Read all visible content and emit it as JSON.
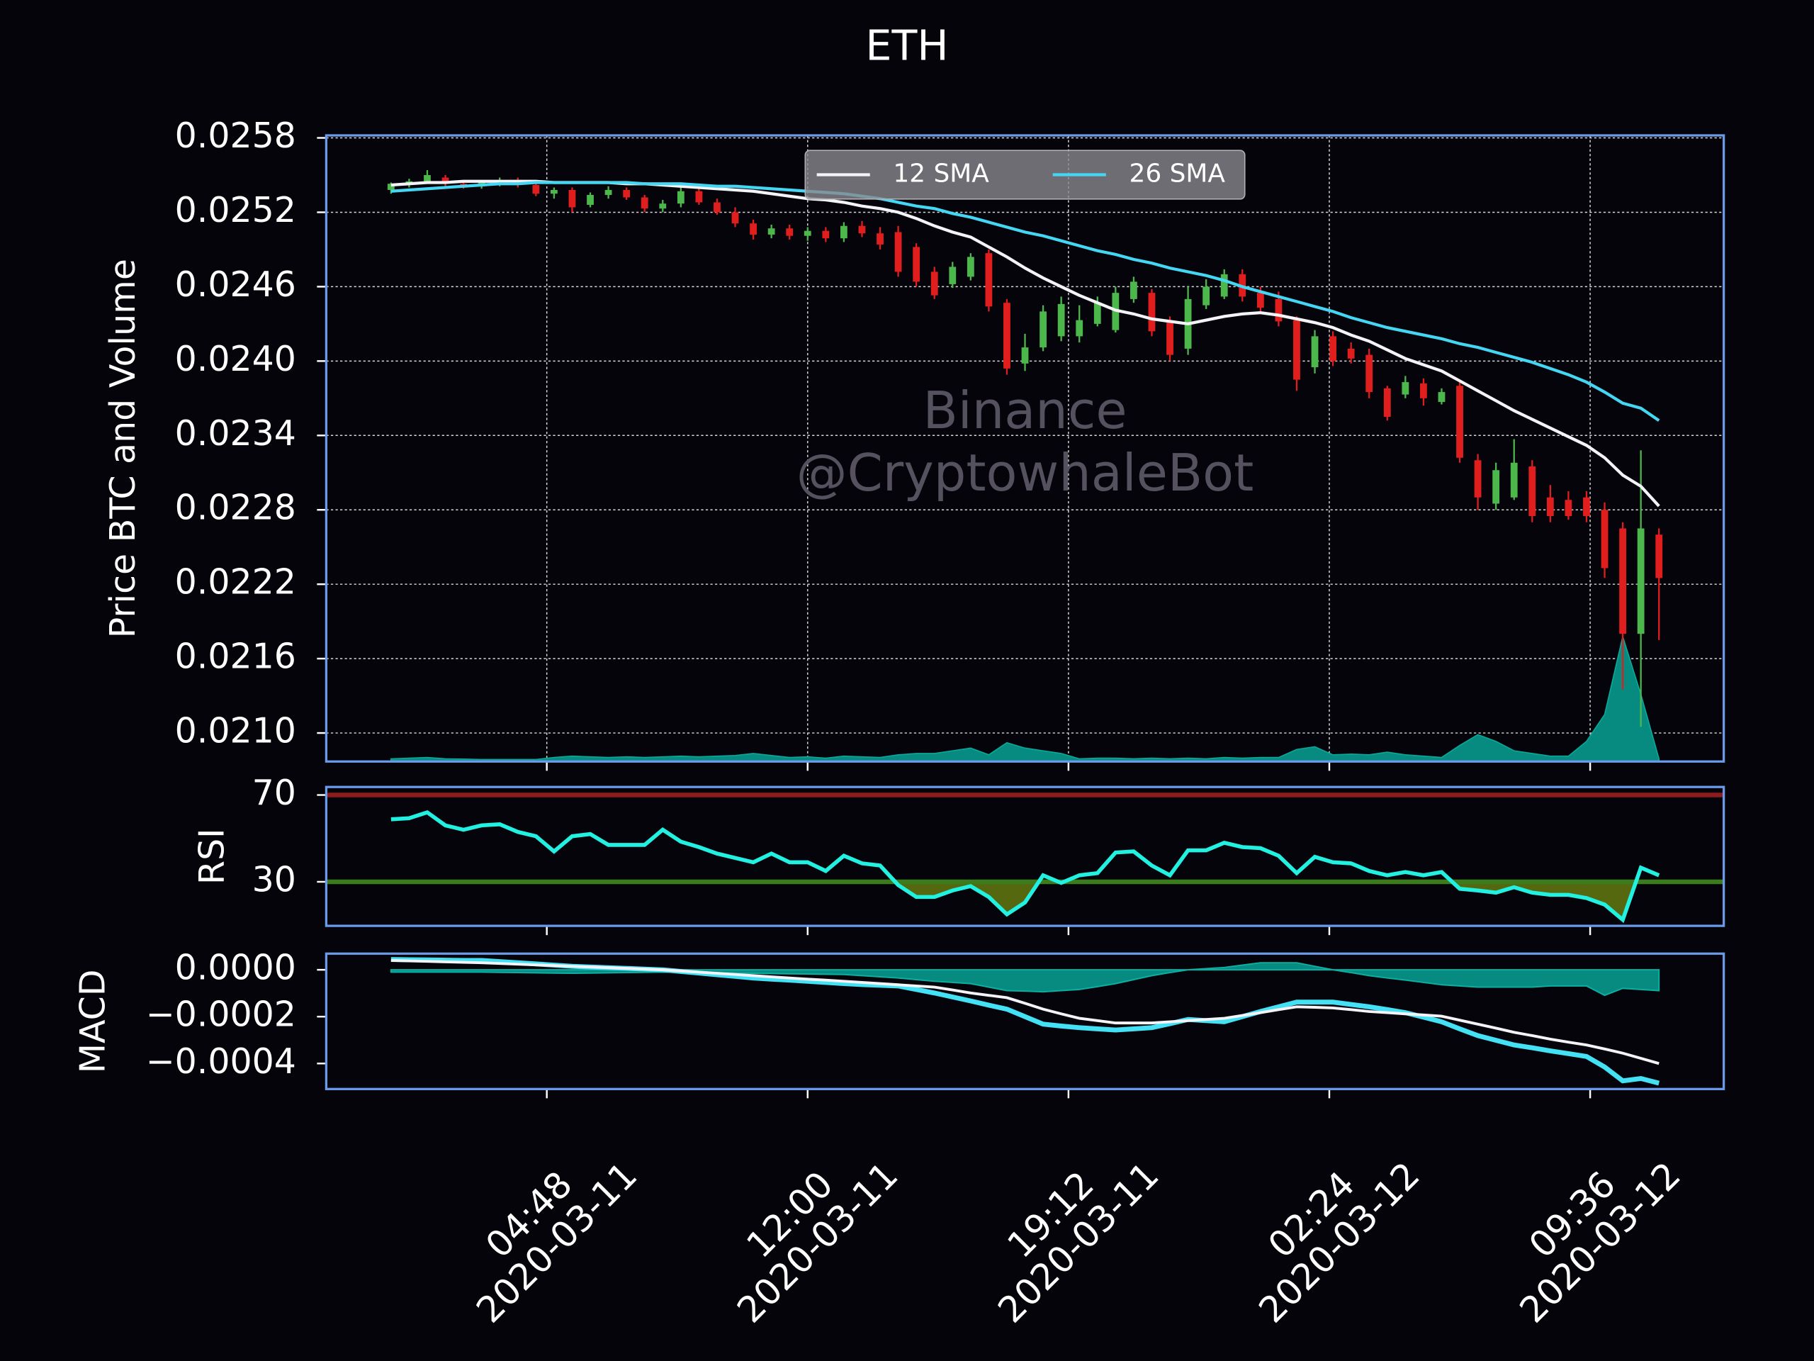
{
  "chart_data": [
    {
      "type": "candlestick",
      "title": "ETH",
      "y_label": "Price BTC and Volume",
      "watermark": [
        "Binance",
        "@CryptowhaleBot"
      ],
      "x": [
        "2020-03-11 00:30",
        "2020-03-11 01:00",
        "2020-03-11 01:30",
        "2020-03-11 02:00",
        "2020-03-11 02:30",
        "2020-03-11 03:00",
        "2020-03-11 03:30",
        "2020-03-11 04:00",
        "2020-03-11 04:30",
        "2020-03-11 05:00",
        "2020-03-11 05:30",
        "2020-03-11 06:00",
        "2020-03-11 06:30",
        "2020-03-11 07:00",
        "2020-03-11 07:30",
        "2020-03-11 08:00",
        "2020-03-11 08:30",
        "2020-03-11 09:00",
        "2020-03-11 09:30",
        "2020-03-11 10:00",
        "2020-03-11 10:30",
        "2020-03-11 11:00",
        "2020-03-11 11:30",
        "2020-03-11 12:00",
        "2020-03-11 12:30",
        "2020-03-11 13:00",
        "2020-03-11 13:30",
        "2020-03-11 14:00",
        "2020-03-11 14:30",
        "2020-03-11 15:00",
        "2020-03-11 15:30",
        "2020-03-11 16:00",
        "2020-03-11 16:30",
        "2020-03-11 17:00",
        "2020-03-11 17:30",
        "2020-03-11 18:00",
        "2020-03-11 18:30",
        "2020-03-11 19:00",
        "2020-03-11 19:30",
        "2020-03-11 20:00",
        "2020-03-11 20:30",
        "2020-03-11 21:00",
        "2020-03-11 21:30",
        "2020-03-11 22:00",
        "2020-03-11 22:30",
        "2020-03-11 23:00",
        "2020-03-11 23:30",
        "2020-03-12 00:00",
        "2020-03-12 00:30",
        "2020-03-12 01:00",
        "2020-03-12 01:30",
        "2020-03-12 02:00",
        "2020-03-12 02:30",
        "2020-03-12 03:00",
        "2020-03-12 03:30",
        "2020-03-12 04:00",
        "2020-03-12 04:30",
        "2020-03-12 05:00",
        "2020-03-12 05:30",
        "2020-03-12 06:00",
        "2020-03-12 06:30",
        "2020-03-12 07:00",
        "2020-03-12 07:30",
        "2020-03-12 08:00",
        "2020-03-12 08:30",
        "2020-03-12 09:00",
        "2020-03-12 09:30",
        "2020-03-12 10:00",
        "2020-03-12 10:30",
        "2020-03-12 11:00",
        "2020-03-12 11:30"
      ],
      "open": [
        0.02538,
        0.02543,
        0.02545,
        0.02548,
        0.02543,
        0.02541,
        0.02544,
        0.02546,
        0.02542,
        0.02535,
        0.02538,
        0.02526,
        0.02534,
        0.02538,
        0.02532,
        0.02523,
        0.02527,
        0.02537,
        0.02528,
        0.0252,
        0.02511,
        0.02502,
        0.02507,
        0.02501,
        0.02505,
        0.02499,
        0.02509,
        0.02503,
        0.02504,
        0.02492,
        0.02472,
        0.02462,
        0.02468,
        0.02487,
        0.02447,
        0.02398,
        0.02411,
        0.0242,
        0.0242,
        0.0243,
        0.02425,
        0.0245,
        0.02455,
        0.02432,
        0.0241,
        0.02445,
        0.02452,
        0.0247,
        0.02455,
        0.0245,
        0.02433,
        0.02395,
        0.0242,
        0.0241,
        0.02405,
        0.02378,
        0.02373,
        0.02382,
        0.02367,
        0.0238,
        0.0232,
        0.02285,
        0.0229,
        0.02315,
        0.0229,
        0.02288,
        0.0229,
        0.0228,
        0.02265,
        0.0218,
        0.0226
      ],
      "high": [
        0.02544,
        0.02547,
        0.02554,
        0.0255,
        0.02546,
        0.02546,
        0.02548,
        0.02548,
        0.02544,
        0.0254,
        0.0254,
        0.02536,
        0.02541,
        0.0254,
        0.02534,
        0.0253,
        0.0254,
        0.0254,
        0.02531,
        0.02524,
        0.02514,
        0.0251,
        0.0251,
        0.02508,
        0.02508,
        0.02512,
        0.02513,
        0.02508,
        0.02509,
        0.02495,
        0.02476,
        0.0248,
        0.02487,
        0.0249,
        0.0245,
        0.02422,
        0.02445,
        0.02452,
        0.02445,
        0.02452,
        0.0246,
        0.02468,
        0.02458,
        0.02436,
        0.0246,
        0.02466,
        0.02474,
        0.02474,
        0.0246,
        0.02456,
        0.02436,
        0.02425,
        0.02424,
        0.02415,
        0.0241,
        0.0238,
        0.02388,
        0.02386,
        0.02378,
        0.02383,
        0.02325,
        0.02318,
        0.02337,
        0.0232,
        0.023,
        0.02295,
        0.02295,
        0.02286,
        0.0227,
        0.02328,
        0.02265
      ],
      "low": [
        0.02535,
        0.0254,
        0.02543,
        0.02541,
        0.02539,
        0.02539,
        0.02541,
        0.0254,
        0.02533,
        0.02531,
        0.0252,
        0.02524,
        0.02531,
        0.0253,
        0.0252,
        0.0252,
        0.02524,
        0.02526,
        0.02518,
        0.02508,
        0.02498,
        0.02499,
        0.02498,
        0.02497,
        0.02496,
        0.02496,
        0.025,
        0.0249,
        0.02468,
        0.0246,
        0.0245,
        0.02459,
        0.02465,
        0.0244,
        0.02389,
        0.02392,
        0.02408,
        0.02416,
        0.02415,
        0.02428,
        0.02423,
        0.02447,
        0.0242,
        0.024,
        0.02405,
        0.02442,
        0.0245,
        0.02448,
        0.0244,
        0.02428,
        0.02376,
        0.0239,
        0.02396,
        0.02398,
        0.0237,
        0.02352,
        0.0237,
        0.02364,
        0.02365,
        0.02318,
        0.0228,
        0.0228,
        0.02288,
        0.0227,
        0.0227,
        0.02272,
        0.0227,
        0.02225,
        0.02135,
        0.02105,
        0.02175
      ],
      "close": [
        0.02543,
        0.02545,
        0.0255,
        0.02543,
        0.02541,
        0.02544,
        0.02546,
        0.02542,
        0.02535,
        0.02538,
        0.02524,
        0.02534,
        0.02538,
        0.02532,
        0.02523,
        0.02527,
        0.02537,
        0.02528,
        0.0252,
        0.02511,
        0.02502,
        0.02507,
        0.02501,
        0.02505,
        0.02499,
        0.02509,
        0.02503,
        0.02494,
        0.02472,
        0.02464,
        0.02453,
        0.02476,
        0.02484,
        0.02444,
        0.02394,
        0.02411,
        0.0244,
        0.02446,
        0.02433,
        0.02447,
        0.02455,
        0.02464,
        0.02424,
        0.02405,
        0.0245,
        0.0246,
        0.0247,
        0.02452,
        0.02443,
        0.02432,
        0.02385,
        0.0242,
        0.024,
        0.02402,
        0.02375,
        0.02355,
        0.02383,
        0.0237,
        0.02375,
        0.02322,
        0.0229,
        0.02312,
        0.02318,
        0.02275,
        0.02275,
        0.02275,
        0.02275,
        0.02233,
        0.0218,
        0.02265,
        0.02225
      ],
      "up_color": "#4cb84c",
      "down_color": "#e01e1e",
      "series": [
        {
          "name": "12 SMA",
          "color": "#f4f4f8",
          "values": [
            0.02542,
            0.02543,
            0.02544,
            0.02544,
            0.02545,
            0.02545,
            0.02545,
            0.02545,
            0.02545,
            0.02544,
            0.02544,
            0.02544,
            0.02544,
            0.02543,
            0.02543,
            0.02542,
            0.02541,
            0.0254,
            0.02539,
            0.02538,
            0.02537,
            0.02535,
            0.02533,
            0.02531,
            0.0253,
            0.02528,
            0.02525,
            0.02523,
            0.0252,
            0.02515,
            0.02509,
            0.02504,
            0.025,
            0.02492,
            0.02484,
            0.02475,
            0.02467,
            0.0246,
            0.02453,
            0.02447,
            0.02441,
            0.02438,
            0.02434,
            0.02432,
            0.0243,
            0.02433,
            0.02436,
            0.02438,
            0.02439,
            0.02437,
            0.02434,
            0.02431,
            0.02427,
            0.02421,
            0.02416,
            0.02409,
            0.02402,
            0.02397,
            0.02392,
            0.02384,
            0.02376,
            0.02368,
            0.0236,
            0.02353,
            0.02346,
            0.02339,
            0.02332,
            0.02322,
            0.02308,
            0.02299,
            0.02283
          ]
        },
        {
          "name": "26 SMA",
          "color": "#44d6f2",
          "values": [
            0.02537,
            0.02538,
            0.02539,
            0.0254,
            0.02541,
            0.02542,
            0.02543,
            0.02543,
            0.02544,
            0.02544,
            0.02544,
            0.02544,
            0.02544,
            0.02544,
            0.02543,
            0.02543,
            0.02543,
            0.02542,
            0.02541,
            0.02541,
            0.0254,
            0.02539,
            0.02538,
            0.02537,
            0.02536,
            0.02535,
            0.02533,
            0.02531,
            0.02528,
            0.02525,
            0.02523,
            0.02519,
            0.02516,
            0.02512,
            0.02508,
            0.02504,
            0.02501,
            0.02497,
            0.02493,
            0.02489,
            0.02486,
            0.02482,
            0.02479,
            0.02475,
            0.02472,
            0.02469,
            0.02465,
            0.0246,
            0.02456,
            0.02452,
            0.02448,
            0.02444,
            0.0244,
            0.02435,
            0.02431,
            0.02427,
            0.02424,
            0.02421,
            0.02418,
            0.02414,
            0.02411,
            0.02407,
            0.02403,
            0.02399,
            0.02394,
            0.02389,
            0.02383,
            0.02375,
            0.02366,
            0.02362,
            0.02352
          ]
        }
      ],
      "volume": {
        "axis": "y2",
        "color": "#078a80",
        "values": [
          20,
          25,
          30,
          20,
          18,
          15,
          15,
          15,
          15,
          30,
          40,
          35,
          30,
          35,
          30,
          35,
          40,
          35,
          40,
          45,
          60,
          45,
          30,
          35,
          25,
          40,
          35,
          30,
          50,
          60,
          60,
          80,
          100,
          50,
          140,
          100,
          80,
          60,
          20,
          25,
          25,
          20,
          25,
          20,
          25,
          20,
          30,
          25,
          30,
          30,
          90,
          110,
          50,
          55,
          50,
          70,
          50,
          40,
          30,
          120,
          200,
          150,
          80,
          60,
          40,
          40,
          150,
          350,
          930,
          500,
          20
        ]
      },
      "ylim": [
        0.02077,
        0.02582
      ],
      "yticks": [
        {
          "value": 0.021,
          "label": "0.0210"
        },
        0.0216,
        0.0222,
        0.0228,
        0.0234,
        {
          "value": 0.024,
          "label": "0.0240"
        },
        0.0246,
        0.0252,
        0.0258
      ],
      "y2lim": [
        0,
        4664
      ],
      "grid": true,
      "legend": "upper center"
    },
    {
      "type": "line",
      "y_label": "RSI",
      "color": "#22f0e0",
      "values": [
        58.8,
        59.3,
        62,
        56,
        54,
        56,
        56.5,
        53,
        51,
        44,
        51,
        52,
        47,
        47,
        47,
        54,
        48.5,
        46,
        43,
        41,
        39,
        43,
        39,
        39,
        35,
        42,
        38.5,
        37.5,
        28.5,
        23,
        23,
        26,
        28,
        23,
        15,
        20.5,
        33,
        29.5,
        33,
        34,
        43.5,
        44,
        37.5,
        33,
        44.5,
        44.5,
        48,
        46,
        45.5,
        42,
        34,
        41.5,
        39,
        38.5,
        35,
        33,
        34.5,
        33,
        34.5,
        26.8,
        26,
        25,
        27.5,
        25,
        24,
        24,
        22.5,
        19.5,
        12.5,
        36.5,
        33
      ],
      "hlines": [
        {
          "value": 70,
          "color": "#8e1c1c"
        },
        {
          "value": 30,
          "color": "#3b7d1c"
        }
      ],
      "fill_color": "#56680f",
      "ylim": [
        9.7,
        73.7
      ],
      "yticks": [
        30,
        70
      ]
    },
    {
      "type": "macd",
      "y_label": "MACD",
      "series": [
        {
          "color": "#44e0f4",
          "values": [
            4.4e-05,
            4.3e-05,
            4.2e-05,
            4.1e-05,
            4e-05,
            4e-05,
            3.5e-05,
            3e-05,
            2.5e-05,
            2e-05,
            1.5e-05,
            1.2e-05,
            9e-06,
            6e-06,
            3e-06,
            0,
            -7e-06,
            -1.4e-05,
            -2.1e-05,
            -2.8e-05,
            -3.5e-05,
            -4e-05,
            -4.4e-05,
            -4.9e-05,
            -5.4e-05,
            -5.9e-05,
            -6.3e-05,
            -6.6e-05,
            -6.9e-05,
            -8.4e-05,
            -9.9e-05,
            -0.000116,
            -0.000133,
            -0.000151,
            -0.000168,
            -0.0002,
            -0.000232,
            -0.00024,
            -0.000247,
            -0.000252,
            -0.000257,
            -0.000252,
            -0.000247,
            -0.00023,
            -0.000212,
            -0.000217,
            -0.000222,
            -0.0002,
            -0.000178,
            -0.000158,
            -0.000138,
            -0.000138,
            -0.000138,
            -0.000148,
            -0.000158,
            -0.00017,
            -0.000183,
            -0.000202,
            -0.000222,
            -0.000252,
            -0.000281,
            -0.000301,
            -0.000321,
            -0.000333,
            -0.000346,
            -0.000358,
            -0.00037,
            -0.000415,
            -0.000474,
            -0.000464,
            -0.000484
          ]
        },
        {
          "color": "#f4f4f8",
          "values": [
            4e-05,
            3.8e-05,
            3.6e-05,
            3.4e-05,
            3.2e-05,
            3e-05,
            2.7e-05,
            2.4e-05,
            2.1e-05,
            1.8e-05,
            1.5e-05,
            1.2e-05,
            9e-06,
            6e-06,
            3e-06,
            0,
            -5e-06,
            -1e-05,
            -1.5e-05,
            -2e-05,
            -2.5e-05,
            -3e-05,
            -3.5e-05,
            -4e-05,
            -4.4e-05,
            -4.9e-05,
            -5.4e-05,
            -5.9e-05,
            -6.4e-05,
            -6.9e-05,
            -7.4e-05,
            -8.6e-05,
            -9.9e-05,
            -0.000109,
            -0.000119,
            -0.000143,
            -0.000168,
            -0.000188,
            -0.000207,
            -0.000217,
            -0.000227,
            -0.000227,
            -0.000227,
            -0.000222,
            -0.000217,
            -0.000212,
            -0.000207,
            -0.000195,
            -0.000183,
            -0.00017,
            -0.000158,
            -0.00016,
            -0.000163,
            -0.00017,
            -0.000178,
            -0.000183,
            -0.000188,
            -0.000193,
            -0.000198,
            -0.000215,
            -0.000232,
            -0.000249,
            -0.000267,
            -0.000281,
            -0.000296,
            -0.000309,
            -0.000321,
            -0.000338,
            -0.000356,
            -0.000378,
            -0.0004
          ]
        }
      ],
      "histogram": {
        "color": "#078a80",
        "values": [
          -1e-05,
          -1e-05,
          -1e-05,
          -1e-05,
          -1e-05,
          -1e-05,
          -1.1e-05,
          -1.2e-05,
          -1.3e-05,
          -1.4e-05,
          -1.5e-05,
          -1.4e-05,
          -1.3e-05,
          -1.2e-05,
          -1.1e-05,
          -1e-05,
          -1.1e-05,
          -1.2e-05,
          -1.3e-05,
          -1.4e-05,
          -1.5e-05,
          -1.6e-05,
          -1.7e-05,
          -1.8e-05,
          -1.9e-05,
          -2e-05,
          -2.5e-05,
          -3e-05,
          -3.5e-05,
          -4.2e-05,
          -4.9e-05,
          -5.4e-05,
          -5.9e-05,
          -7.4e-05,
          -8.9e-05,
          -9.1e-05,
          -9.4e-05,
          -8.9e-05,
          -8.4e-05,
          -7.2e-05,
          -5.9e-05,
          -4.2e-05,
          -2.5e-05,
          -1.2e-05,
          0,
          5e-06,
          1e-05,
          2e-05,
          3e-05,
          3e-05,
          3e-05,
          1.5e-05,
          0,
          -1.2e-05,
          -2.5e-05,
          -3.5e-05,
          -4.4e-05,
          -5.4e-05,
          -6.4e-05,
          -6.9e-05,
          -7.4e-05,
          -7.4e-05,
          -7.4e-05,
          -7.4e-05,
          -6.9e-05,
          -6.9e-05,
          -6.9e-05,
          -0.000109,
          -7.9e-05,
          -8.4e-05,
          -8.9e-05
        ]
      },
      "ylim": [
        -0.000509,
        6.9e-05
      ],
      "yticks": [
        {
          "value": -0.0004,
          "label": "−0.0004"
        },
        {
          "value": -0.0002,
          "label": "−0.0002"
        },
        {
          "value": 0,
          "label": "0.0000"
        }
      ],
      "xticks": [
        {
          "value": "2020-03-11 04:48",
          "label": [
            "04:48",
            "2020-03-11"
          ]
        },
        {
          "value": "2020-03-11 12:00",
          "label": [
            "12:00",
            "2020-03-11"
          ]
        },
        {
          "value": "2020-03-11 19:12",
          "label": [
            "19:12",
            "2020-03-11"
          ]
        },
        {
          "value": "2020-03-12 02:24",
          "label": [
            "02:24",
            "2020-03-12"
          ]
        },
        {
          "value": "2020-03-12 09:36",
          "label": [
            "09:36",
            "2020-03-12"
          ]
        }
      ]
    }
  ]
}
